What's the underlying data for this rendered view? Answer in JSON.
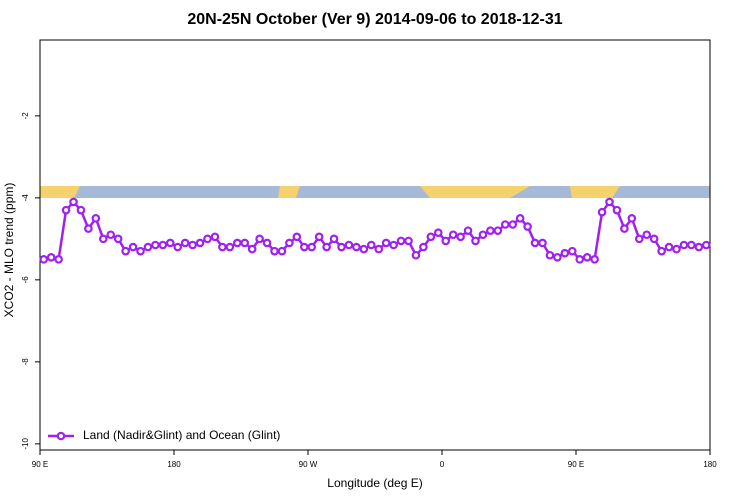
{
  "chart_data": {
    "type": "line",
    "title": "20N-25N October (Ver 9)   2014-09-06 to 2018-12-31",
    "xlabel": "Longitude (deg E)",
    "ylabel": "XCO2 - MLO trend (ppm)",
    "x": [
      92.5,
      97.5,
      102.5,
      107.5,
      112.5,
      117.5,
      122.5,
      127.5,
      132.5,
      137.5,
      142.5,
      147.5,
      152.5,
      157.5,
      162.5,
      167.5,
      172.5,
      177.5,
      182.5,
      187.5,
      192.5,
      197.5,
      202.5,
      207.5,
      212.5,
      217.5,
      222.5,
      227.5,
      232.5,
      237.5,
      242.5,
      247.5,
      252.5,
      257.5,
      262.5,
      267.5,
      272.5,
      277.5,
      282.5,
      287.5,
      292.5,
      297.5,
      302.5,
      307.5,
      312.5,
      317.5,
      322.5,
      327.5,
      332.5,
      337.5,
      342.5,
      347.5,
      352.5,
      357.5,
      362.5,
      367.5,
      372.5,
      377.5,
      382.5,
      387.5,
      392.5,
      397.5,
      402.5,
      407.5,
      412.5,
      417.5,
      422.5,
      427.5,
      432.5,
      437.5,
      442.5,
      447.5,
      452.5,
      457.5,
      462.5,
      467.5,
      472.5,
      477.5,
      482.5,
      487.5,
      492.5,
      497.5,
      502.5,
      507.5,
      512.5,
      517.5,
      522.5,
      527.5,
      532.5,
      537.5
    ],
    "series": [
      {
        "name": "Land (Nadir&Glint) and Ocean (Glint)",
        "color": "#a020f0",
        "values": [
          -5.5,
          -5.45,
          -5.5,
          -4.3,
          -4.1,
          -4.3,
          -4.75,
          -4.5,
          -5.0,
          -4.9,
          -5.0,
          -5.3,
          -5.2,
          -5.3,
          -5.2,
          -5.15,
          -5.15,
          -5.1,
          -5.2,
          -5.1,
          -5.15,
          -5.1,
          -5.0,
          -4.95,
          -5.2,
          -5.2,
          -5.1,
          -5.1,
          -5.25,
          -5.0,
          -5.1,
          -5.3,
          -5.3,
          -5.1,
          -4.95,
          -5.2,
          -5.2,
          -4.95,
          -5.2,
          -5.0,
          -5.2,
          -5.15,
          -5.2,
          -5.25,
          -5.15,
          -5.25,
          -5.1,
          -5.15,
          -5.05,
          -5.05,
          -5.4,
          -5.2,
          -4.95,
          -4.85,
          -5.05,
          -4.9,
          -4.95,
          -4.8,
          -5.05,
          -4.9,
          -4.8,
          -4.8,
          -4.65,
          -4.65,
          -4.5,
          -4.7,
          -5.1,
          -5.1,
          -5.4,
          -5.45,
          -5.35,
          -5.3,
          -5.5,
          -5.45,
          -5.5,
          -4.35,
          -4.1,
          -4.3,
          -4.75,
          -4.5,
          -5.0,
          -4.9,
          -5.0,
          -5.3,
          -5.2,
          -5.25,
          -5.15,
          -5.15,
          -5.2,
          -5.15
        ]
      }
    ],
    "xlim": [
      90,
      540
    ],
    "xticks": [
      {
        "value": 90,
        "label": "90 E"
      },
      180,
      {
        "value": 270,
        "label": "90 W"
      },
      {
        "value": 360,
        "label": "0"
      },
      {
        "value": 450,
        "label": "90 E"
      },
      {
        "value": 540,
        "label": "180"
      }
    ],
    "ylim": [
      -10.15,
      -0.15
    ],
    "yticks": [
      -10,
      -8,
      -6,
      -4,
      -2
    ],
    "legend": "bottom-left"
  }
}
